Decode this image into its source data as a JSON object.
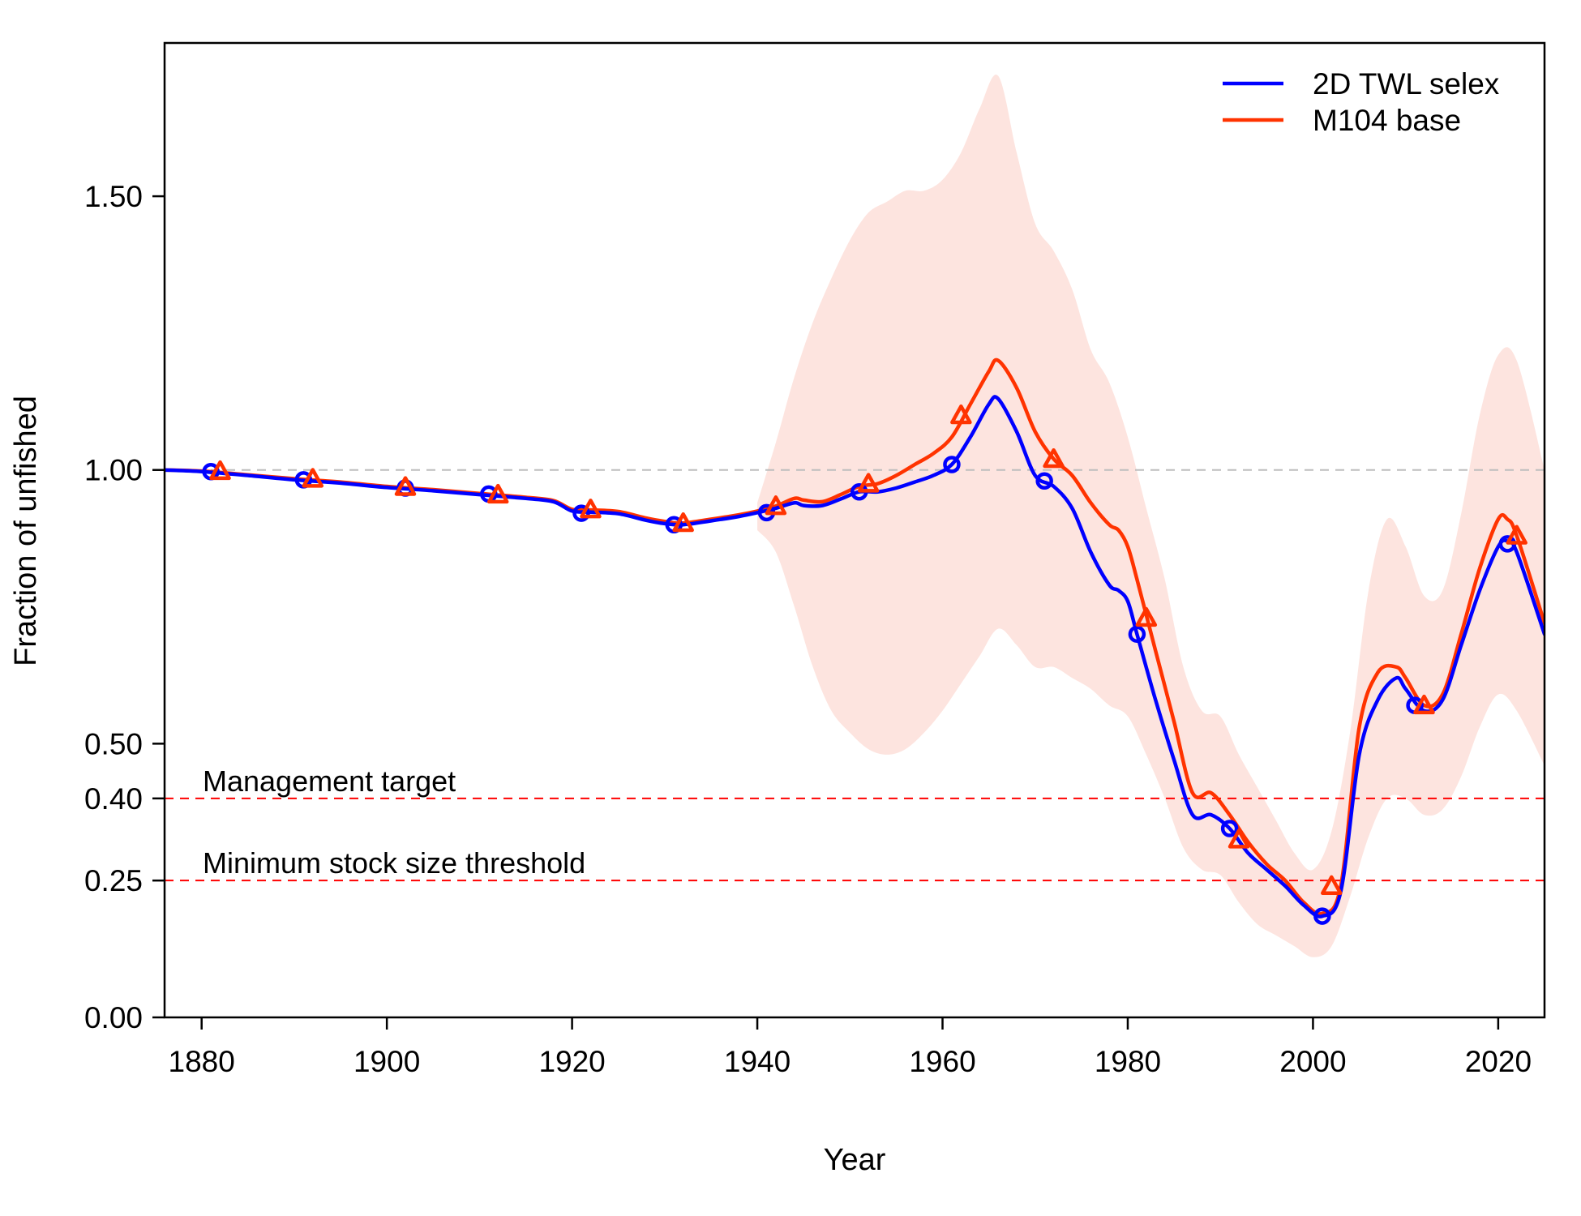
{
  "chart_data": {
    "type": "line",
    "title": "",
    "xlabel": "Year",
    "ylabel": "Fraction of unfished",
    "xlim": [
      1876,
      2025
    ],
    "ylim": [
      0,
      1.78
    ],
    "x_ticks": [
      1880,
      1900,
      1920,
      1940,
      1960,
      1980,
      2000,
      2020
    ],
    "y_ticks": [
      0.0,
      0.25,
      0.4,
      0.5,
      1.0,
      1.5
    ],
    "y_tick_labels": [
      "0.00",
      "0.25",
      "0.40",
      "0.50",
      "1.00",
      "1.50"
    ],
    "legend_position": "top-right",
    "reference_lines": [
      {
        "y": 1.0,
        "color": "#bdbdbd",
        "style": "dashed",
        "label": ""
      },
      {
        "y": 0.4,
        "color": "#ff0000",
        "style": "dashed",
        "label": "Management target"
      },
      {
        "y": 0.25,
        "color": "#ff0000",
        "style": "dashed",
        "label": "Minimum stock size threshold"
      }
    ],
    "uncertainty_band": {
      "series": "M104 base",
      "color": "#fde4df",
      "x": [
        1940,
        1942,
        1944,
        1946,
        1948,
        1950,
        1952,
        1954,
        1956,
        1958,
        1960,
        1962,
        1964,
        1966,
        1968,
        1970,
        1972,
        1974,
        1976,
        1978,
        1980,
        1982,
        1984,
        1986,
        1988,
        1990,
        1992,
        1994,
        1996,
        1998,
        2000,
        2002,
        2004,
        2006,
        2008,
        2010,
        2012,
        2014,
        2016,
        2018,
        2020,
        2022,
        2025
      ],
      "upper": [
        0.94,
        1.05,
        1.17,
        1.27,
        1.35,
        1.42,
        1.47,
        1.49,
        1.51,
        1.51,
        1.53,
        1.58,
        1.66,
        1.72,
        1.58,
        1.45,
        1.4,
        1.33,
        1.22,
        1.16,
        1.06,
        0.93,
        0.8,
        0.64,
        0.56,
        0.55,
        0.48,
        0.42,
        0.36,
        0.3,
        0.27,
        0.34,
        0.52,
        0.78,
        0.91,
        0.86,
        0.77,
        0.78,
        0.92,
        1.1,
        1.21,
        1.2,
        1.0
      ],
      "lower": [
        0.89,
        0.85,
        0.75,
        0.64,
        0.56,
        0.52,
        0.49,
        0.48,
        0.49,
        0.52,
        0.56,
        0.61,
        0.66,
        0.71,
        0.68,
        0.64,
        0.64,
        0.62,
        0.6,
        0.57,
        0.55,
        0.48,
        0.4,
        0.31,
        0.27,
        0.26,
        0.21,
        0.17,
        0.15,
        0.13,
        0.11,
        0.13,
        0.22,
        0.33,
        0.4,
        0.4,
        0.37,
        0.38,
        0.44,
        0.53,
        0.59,
        0.56,
        0.46
      ]
    },
    "series": [
      {
        "name": "2D TWL selex",
        "color": "#0000ff",
        "marker": "circle",
        "x": [
          1876,
          1880,
          1885,
          1890,
          1895,
          1900,
          1905,
          1910,
          1915,
          1918,
          1920,
          1922,
          1925,
          1928,
          1930,
          1932,
          1935,
          1938,
          1940,
          1942,
          1944,
          1945,
          1947,
          1949,
          1951,
          1953,
          1955,
          1957,
          1959,
          1961,
          1963,
          1965,
          1966,
          1968,
          1970,
          1972,
          1974,
          1976,
          1978,
          1979,
          1980,
          1981,
          1983,
          1985,
          1987,
          1989,
          1991,
          1993,
          1995,
          1997,
          1999,
          2001,
          2003,
          2005,
          2007,
          2009,
          2010,
          2012,
          2014,
          2016,
          2018,
          2020,
          2021,
          2022,
          2025
        ],
        "y": [
          1.0,
          0.997,
          0.99,
          0.982,
          0.976,
          0.968,
          0.962,
          0.955,
          0.948,
          0.942,
          0.925,
          0.923,
          0.92,
          0.908,
          0.902,
          0.9,
          0.907,
          0.915,
          0.922,
          0.93,
          0.94,
          0.935,
          0.935,
          0.947,
          0.96,
          0.96,
          0.967,
          0.978,
          0.99,
          1.01,
          1.06,
          1.12,
          1.13,
          1.07,
          0.99,
          0.97,
          0.93,
          0.85,
          0.79,
          0.78,
          0.76,
          0.7,
          0.58,
          0.47,
          0.37,
          0.37,
          0.345,
          0.3,
          0.27,
          0.24,
          0.205,
          0.185,
          0.23,
          0.48,
          0.58,
          0.62,
          0.6,
          0.56,
          0.58,
          0.68,
          0.78,
          0.86,
          0.87,
          0.85,
          0.7
        ],
        "marker_x": [
          1881,
          1891,
          1902,
          1911,
          1921,
          1931,
          1941,
          1951,
          1961,
          1971,
          1981,
          1991,
          2001,
          2011,
          2021
        ],
        "marker_y": [
          0.997,
          0.982,
          0.967,
          0.956,
          0.921,
          0.9,
          0.922,
          0.96,
          1.01,
          0.98,
          0.7,
          0.345,
          0.185,
          0.57,
          0.865
        ]
      },
      {
        "name": "M104 base",
        "color": "#ff3300",
        "marker": "triangle",
        "x": [
          1876,
          1880,
          1885,
          1890,
          1895,
          1900,
          1905,
          1910,
          1915,
          1918,
          1920,
          1922,
          1925,
          1928,
          1930,
          1932,
          1935,
          1938,
          1940,
          1942,
          1944,
          1945,
          1947,
          1949,
          1951,
          1953,
          1955,
          1957,
          1959,
          1961,
          1963,
          1965,
          1966,
          1968,
          1970,
          1972,
          1974,
          1976,
          1978,
          1979,
          1980,
          1981,
          1983,
          1985,
          1987,
          1989,
          1991,
          1993,
          1995,
          1997,
          1999,
          2001,
          2003,
          2005,
          2007,
          2009,
          2010,
          2012,
          2014,
          2016,
          2018,
          2020,
          2021,
          2022,
          2025
        ],
        "y": [
          1.0,
          0.998,
          0.991,
          0.984,
          0.978,
          0.97,
          0.964,
          0.957,
          0.95,
          0.944,
          0.928,
          0.927,
          0.924,
          0.912,
          0.906,
          0.903,
          0.91,
          0.918,
          0.925,
          0.934,
          0.948,
          0.945,
          0.942,
          0.955,
          0.97,
          0.975,
          0.99,
          1.01,
          1.03,
          1.06,
          1.12,
          1.18,
          1.2,
          1.15,
          1.07,
          1.02,
          0.99,
          0.94,
          0.9,
          0.89,
          0.86,
          0.8,
          0.67,
          0.54,
          0.41,
          0.41,
          0.37,
          0.32,
          0.28,
          0.25,
          0.21,
          0.19,
          0.24,
          0.53,
          0.63,
          0.64,
          0.62,
          0.57,
          0.59,
          0.7,
          0.82,
          0.91,
          0.91,
          0.88,
          0.72
        ],
        "marker_x": [
          1882,
          1892,
          1902,
          1912,
          1922,
          1932,
          1942,
          1952,
          1962,
          1972,
          1982,
          1992,
          2002,
          2012,
          2022
        ],
        "marker_y": [
          0.998,
          0.984,
          0.969,
          0.955,
          0.928,
          0.903,
          0.934,
          0.975,
          1.1,
          1.02,
          0.73,
          0.325,
          0.24,
          0.57,
          0.88
        ]
      }
    ]
  }
}
